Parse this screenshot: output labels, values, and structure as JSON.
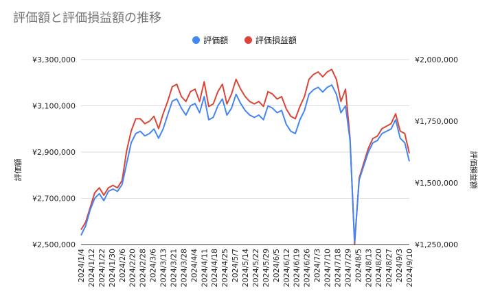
{
  "title": "評価額と評価損益額の推移",
  "colors": {
    "series1": "#4285F4",
    "series2": "#DB4437",
    "grid": "#d9d9d9",
    "axis": "#333333"
  },
  "chart_data": {
    "type": "line",
    "title": "評価額と評価損益額の推移",
    "legend_position": "top",
    "grid": true,
    "ylabel_left": "評価額",
    "ylabel_right": "評価損益額",
    "ylim_left": [
      2500000,
      3300000
    ],
    "ylim_right": [
      1250000,
      2000000
    ],
    "yticks_left": [
      "¥2,500,000",
      "¥2,700,000",
      "¥2,900,000",
      "¥3,100,000",
      "¥3,300,000"
    ],
    "yticks_right": [
      "¥1,250,000",
      "¥1,500,000",
      "¥1,750,000",
      "¥2,000,000"
    ],
    "xtick_labels": [
      "2024/1/4",
      "2024/1/12",
      "2024/1/22",
      "2024/1/30",
      "2024/2/6",
      "2024/2/20",
      "2024/2/28",
      "2024/3/6",
      "2024/3/13",
      "2024/3/21",
      "2024/3/28",
      "2024/4/4",
      "2024/4/11",
      "2024/4/18",
      "2024/4/25",
      "2024/5/7",
      "2024/5/14",
      "2024/5/22",
      "2024/5/29",
      "2024/6/5",
      "2024/6/12",
      "2024/6/19",
      "2024/6/26",
      "2024/7/3",
      "2024/7/10",
      "2024/7/18",
      "2024/7/29",
      "2024/8/5",
      "2024/8/13",
      "2024/8/20",
      "2024/8/27",
      "2024/9/3",
      "2024/9/10"
    ],
    "series": [
      {
        "name": "評価額",
        "axis": "left",
        "values": [
          2540000,
          2580000,
          2650000,
          2700000,
          2720000,
          2690000,
          2730000,
          2740000,
          2730000,
          2760000,
          2850000,
          2940000,
          2980000,
          2990000,
          2970000,
          2980000,
          3000000,
          2960000,
          3000000,
          3060000,
          3120000,
          3130000,
          3090000,
          3060000,
          3100000,
          3110000,
          3070000,
          3140000,
          3040000,
          3050000,
          3100000,
          3130000,
          3060000,
          3090000,
          3150000,
          3110000,
          3080000,
          3060000,
          3050000,
          3060000,
          3040000,
          3100000,
          3090000,
          3070000,
          3080000,
          3020000,
          2990000,
          2980000,
          3040000,
          3080000,
          3150000,
          3170000,
          3180000,
          3160000,
          3180000,
          3190000,
          3150000,
          3070000,
          3100000,
          2950000,
          2510000,
          2780000,
          2840000,
          2900000,
          2940000,
          2950000,
          2980000,
          2990000,
          3000000,
          3040000,
          2960000,
          2940000,
          2860000
        ]
      },
      {
        "name": "評価損益額",
        "axis": "right",
        "values": [
          1310000,
          1340000,
          1400000,
          1460000,
          1480000,
          1450000,
          1480000,
          1490000,
          1480000,
          1510000,
          1630000,
          1710000,
          1760000,
          1760000,
          1740000,
          1750000,
          1770000,
          1720000,
          1780000,
          1830000,
          1890000,
          1900000,
          1850000,
          1830000,
          1870000,
          1880000,
          1830000,
          1910000,
          1810000,
          1820000,
          1870000,
          1900000,
          1820000,
          1860000,
          1920000,
          1880000,
          1850000,
          1830000,
          1820000,
          1830000,
          1810000,
          1870000,
          1860000,
          1840000,
          1850000,
          1800000,
          1770000,
          1760000,
          1810000,
          1850000,
          1920000,
          1940000,
          1950000,
          1930000,
          1950000,
          1960000,
          1920000,
          1830000,
          1880000,
          1680000,
          1250000,
          1520000,
          1580000,
          1640000,
          1680000,
          1690000,
          1720000,
          1730000,
          1740000,
          1780000,
          1710000,
          1700000,
          1620000
        ]
      }
    ]
  }
}
